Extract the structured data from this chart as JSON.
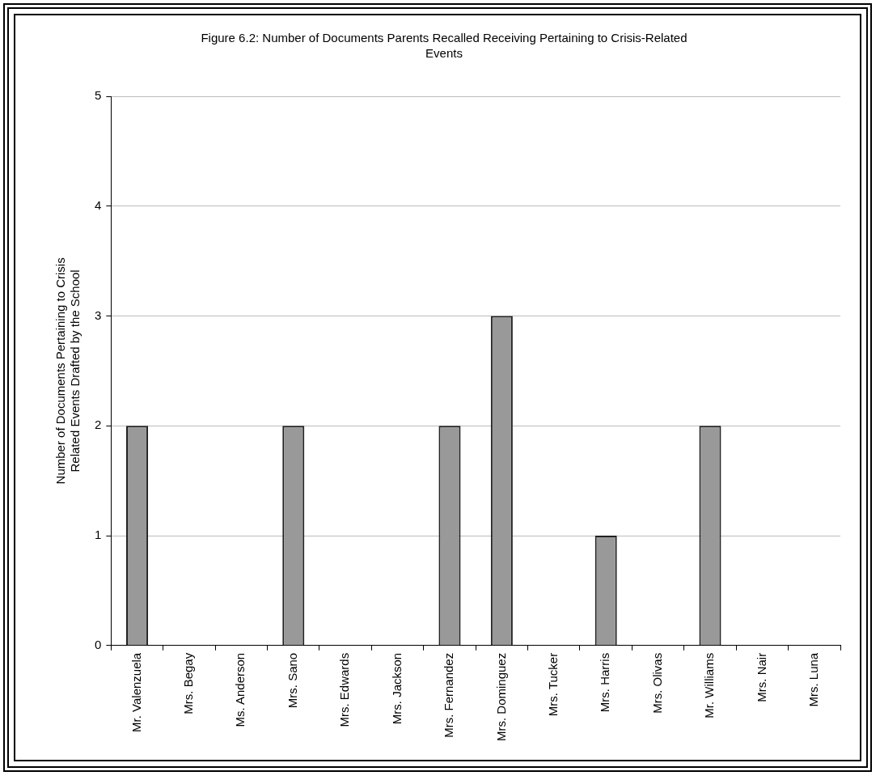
{
  "chart_data": {
    "type": "bar",
    "title": "Figure 6.2: Number of Documents Parents Recalled Receiving Pertaining to Crisis-Related Events",
    "ylabel": "Number of Documents Pertaining to Crisis Related Events Drafted by the School",
    "categories": [
      "Mr. Valenzuela",
      "Mrs. Begay",
      "Ms. Anderson",
      "Mrs. Sano",
      "Mrs. Edwards",
      "Mrs. Jackson",
      "Mrs. Fernandez",
      "Mrs. Dominguez",
      "Mrs. Tucker",
      "Mrs. Harris",
      "Mrs. Olivas",
      "Mr. Williams",
      "Mrs. Nair",
      "Mrs. Luna"
    ],
    "values": [
      2,
      0,
      0,
      2,
      0,
      0,
      2,
      3,
      0,
      1,
      0,
      2,
      0,
      0
    ],
    "color": "#999999",
    "ylim": [
      0,
      5
    ],
    "yticks": [
      0,
      1,
      2,
      3,
      4,
      5
    ],
    "grid": "y",
    "legend": false
  }
}
